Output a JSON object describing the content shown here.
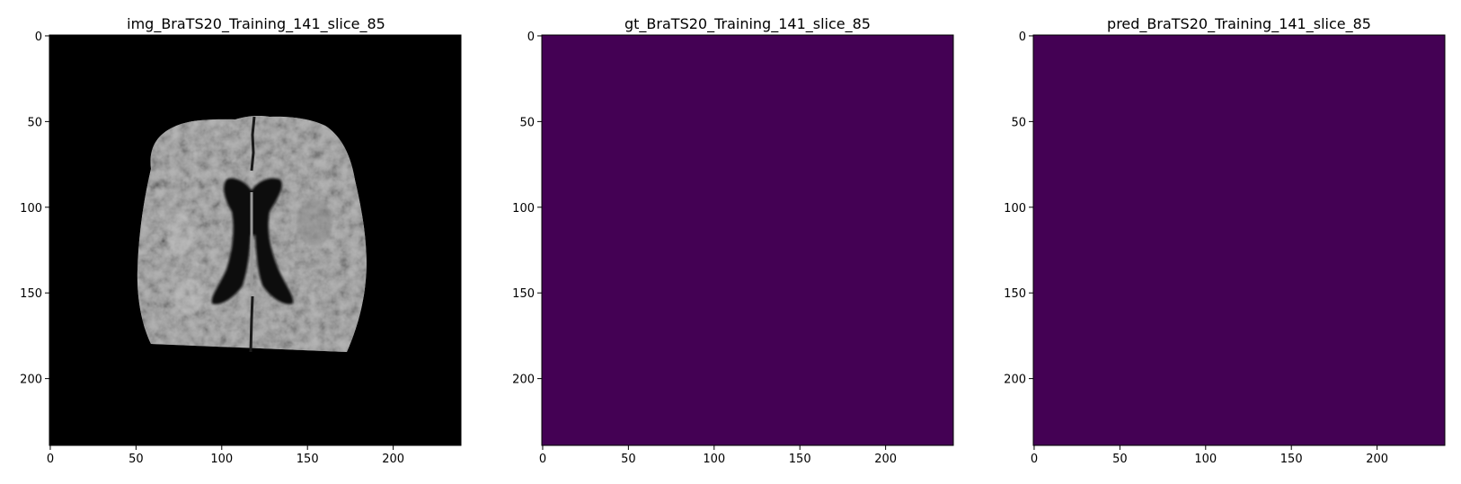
{
  "figure": {
    "panels": [
      {
        "id": "img",
        "title": "img_BraTS20_Training_141_slice_85",
        "content": "brain-mri-grayscale",
        "background_color": "#000000"
      },
      {
        "id": "gt",
        "title": "gt_BraTS20_Training_141_slice_85",
        "content": "empty-mask",
        "fill_color": "#440154"
      },
      {
        "id": "pred",
        "title": "pred_BraTS20_Training_141_slice_85",
        "content": "empty-mask",
        "fill_color": "#440154"
      }
    ],
    "axes": {
      "x_ticks": [
        "0",
        "50",
        "100",
        "150",
        "200"
      ],
      "y_ticks": [
        "0",
        "50",
        "100",
        "150",
        "200"
      ],
      "x_range": [
        0,
        240
      ],
      "y_range": [
        0,
        240
      ]
    }
  }
}
